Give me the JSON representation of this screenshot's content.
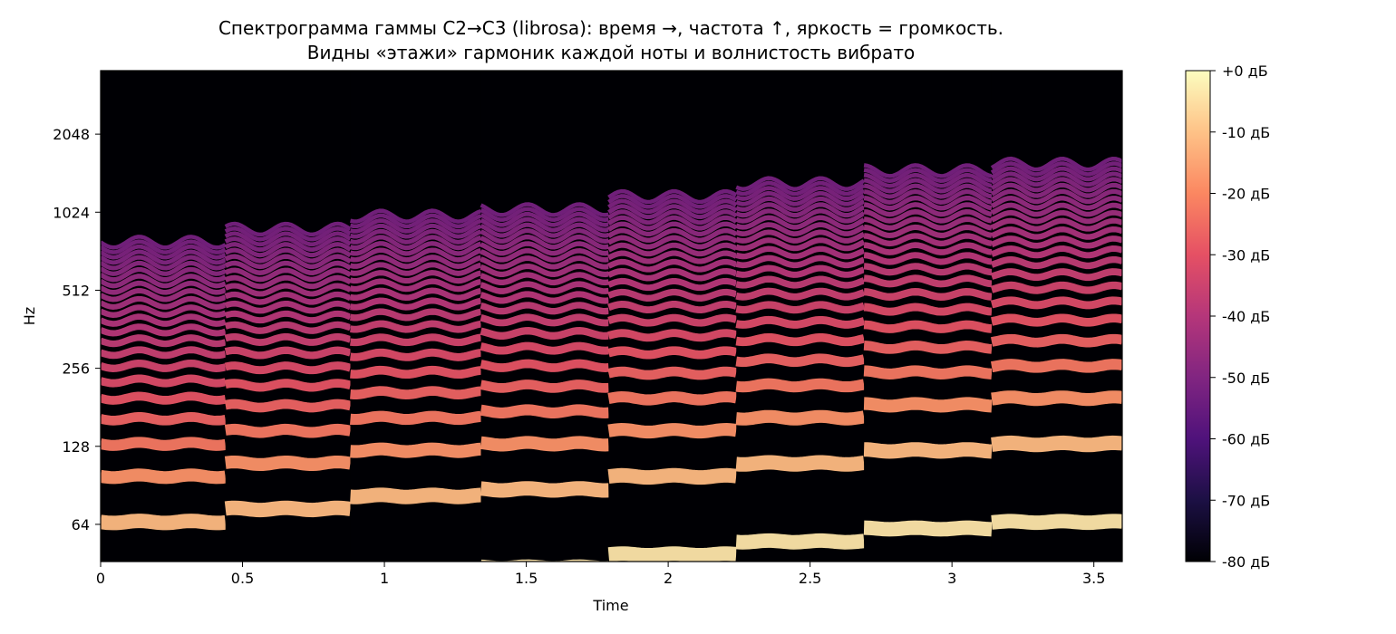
{
  "chart_data": {
    "type": "heatmap",
    "title_line1": "Спектрограмма гаммы C2→C3 (librosa): время →, частота ↑, яркость = громкость.",
    "title_line2": "Видны «этажи» гармоник каждой ноты и волнистость вибрато",
    "xlabel": "Time",
    "ylabel": "Hz",
    "x_ticks": [
      "0",
      "0.5",
      "1",
      "1.5",
      "2",
      "2.5",
      "3",
      "3.5"
    ],
    "y_ticks": [
      "64",
      "128",
      "256",
      "512",
      "1024",
      "2048"
    ],
    "xlim": [
      0,
      3.6
    ],
    "y_scale": "log2",
    "ylim": [
      46,
      3600
    ],
    "colorbar": {
      "colormap": "magma",
      "range_db": [
        -80,
        0
      ],
      "ticks": [
        "+0 дБ",
        "-10 дБ",
        "-20 дБ",
        "-30 дБ",
        "-40 дБ",
        "-50 дБ",
        "-60 дБ",
        "-70 дБ",
        "-80 дБ"
      ]
    },
    "notes": [
      {
        "start": 0.0,
        "end": 0.44,
        "f0": 32.7
      },
      {
        "start": 0.44,
        "end": 0.88,
        "f0": 36.7
      },
      {
        "start": 0.88,
        "end": 1.34,
        "f0": 41.2
      },
      {
        "start": 1.34,
        "end": 1.79,
        "f0": 43.65
      },
      {
        "start": 1.79,
        "end": 2.24,
        "f0": 49.0
      },
      {
        "start": 2.24,
        "end": 2.69,
        "f0": 55.0
      },
      {
        "start": 2.69,
        "end": 3.14,
        "f0": 61.7
      },
      {
        "start": 3.14,
        "end": 3.6,
        "f0": 65.4
      }
    ],
    "harmonics_per_note": 24,
    "vibrato_depth_semitones": 0.25,
    "vibrato_rate_hz": 5.5
  }
}
